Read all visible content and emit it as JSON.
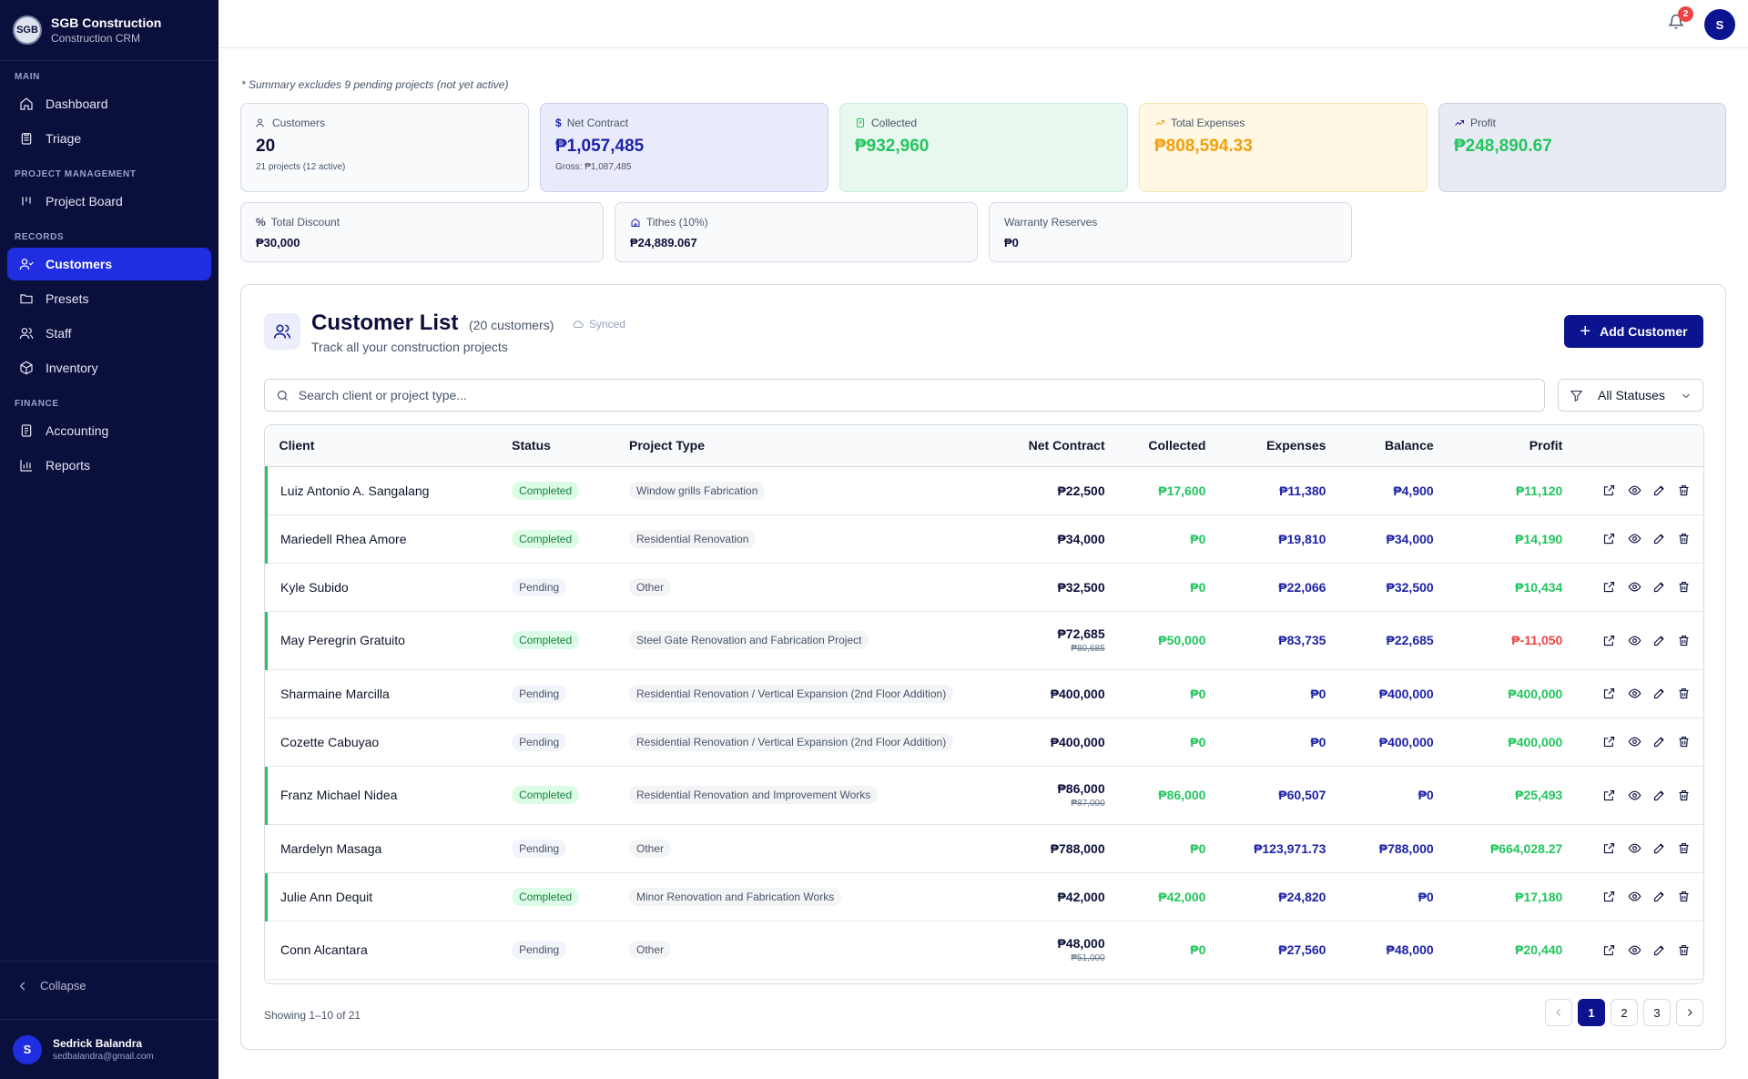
{
  "brand": {
    "logo": "SGB",
    "name": "SGB Construction",
    "sub": "Construction CRM"
  },
  "nav": {
    "sections": [
      {
        "heading": "MAIN",
        "items": [
          {
            "label": "Dashboard",
            "icon": "home-icon"
          },
          {
            "label": "Triage",
            "icon": "clipboard-icon"
          }
        ]
      },
      {
        "heading": "PROJECT MANAGEMENT",
        "items": [
          {
            "label": "Project Board",
            "icon": "kanban-icon"
          }
        ]
      },
      {
        "heading": "RECORDS",
        "items": [
          {
            "label": "Customers",
            "icon": "users-icon",
            "active": true
          },
          {
            "label": "Presets",
            "icon": "folder-icon"
          },
          {
            "label": "Staff",
            "icon": "staff-icon"
          },
          {
            "label": "Inventory",
            "icon": "box-icon"
          }
        ]
      },
      {
        "heading": "FINANCE",
        "items": [
          {
            "label": "Accounting",
            "icon": "ledger-icon"
          },
          {
            "label": "Reports",
            "icon": "bar-chart-icon"
          }
        ]
      }
    ],
    "collapse": "Collapse"
  },
  "user": {
    "initial": "S",
    "name": "Sedrick Balandra",
    "email": "sedbalandra@gmail.com"
  },
  "topbar": {
    "notifications": "2",
    "avatar": "S"
  },
  "summary": {
    "note": "* Summary excludes 9 pending projects (not yet active)",
    "customers": {
      "label": "Customers",
      "value": "20",
      "sub": "21 projects (12 active)"
    },
    "net_contract": {
      "label": "Net Contract",
      "value": "₱1,057,485",
      "sub": "Gross: ₱1,087,485"
    },
    "collected": {
      "label": "Collected",
      "value": "₱932,960"
    },
    "expenses": {
      "label": "Total Expenses",
      "value": "₱808,594.33"
    },
    "profit": {
      "label": "Profit",
      "value": "₱248,890.67"
    },
    "discount": {
      "label": "Total Discount",
      "value": "₱30,000"
    },
    "tithes": {
      "label": "Tithes (10%)",
      "value": "₱24,889.067"
    },
    "warranty": {
      "label": "Warranty Reserves",
      "value": "₱0"
    }
  },
  "panel": {
    "title": "Customer List",
    "count": "(20 customers)",
    "synced": "Synced",
    "desc": "Track all your construction projects",
    "add_label": "Add Customer",
    "search_placeholder": "Search client or project type...",
    "filter_label": "All Statuses"
  },
  "table": {
    "headers": [
      "Client",
      "Status",
      "Project Type",
      "Net Contract",
      "Collected",
      "Expenses",
      "Balance",
      "Profit"
    ],
    "rows": [
      {
        "client": "Luiz Antonio A. Sangalang",
        "status": "Completed",
        "type": "Window grills Fabrication",
        "net": "₱22,500",
        "gross": "",
        "collected": "₱17,600",
        "expenses": "₱11,380",
        "balance": "₱4,900",
        "profit": "₱11,120"
      },
      {
        "client": "Mariedell Rhea Amore",
        "status": "Completed",
        "type": "Residential Renovation",
        "net": "₱34,000",
        "gross": "",
        "collected": "₱0",
        "expenses": "₱19,810",
        "balance": "₱34,000",
        "profit": "₱14,190"
      },
      {
        "client": "Kyle Subido",
        "status": "Pending",
        "type": "Other",
        "net": "₱32,500",
        "gross": "",
        "collected": "₱0",
        "expenses": "₱22,066",
        "balance": "₱32,500",
        "profit": "₱10,434"
      },
      {
        "client": "May Peregrin Gratuito",
        "status": "Completed",
        "type": "Steel Gate Renovation and Fabrication Project",
        "net": "₱72,685",
        "gross": "₱80,685",
        "collected": "₱50,000",
        "expenses": "₱83,735",
        "balance": "₱22,685",
        "profit": "₱-11,050",
        "negative": true
      },
      {
        "client": "Sharmaine Marcilla",
        "status": "Pending",
        "type": "Residential Renovation / Vertical Expansion (2nd Floor Addition)",
        "net": "₱400,000",
        "gross": "",
        "collected": "₱0",
        "expenses": "₱0",
        "balance": "₱400,000",
        "profit": "₱400,000"
      },
      {
        "client": "Cozette Cabuyao",
        "status": "Pending",
        "type": "Residential Renovation / Vertical Expansion (2nd Floor Addition)",
        "net": "₱400,000",
        "gross": "",
        "collected": "₱0",
        "expenses": "₱0",
        "balance": "₱400,000",
        "profit": "₱400,000"
      },
      {
        "client": "Franz Michael Nidea",
        "status": "Completed",
        "type": "Residential Renovation and Improvement Works",
        "net": "₱86,000",
        "gross": "₱87,000",
        "collected": "₱86,000",
        "expenses": "₱60,507",
        "balance": "₱0",
        "profit": "₱25,493"
      },
      {
        "client": "Mardelyn Masaga",
        "status": "Pending",
        "type": "Other",
        "net": "₱788,000",
        "gross": "",
        "collected": "₱0",
        "expenses": "₱123,971.73",
        "balance": "₱788,000",
        "profit": "₱664,028.27"
      },
      {
        "client": "Julie Ann Dequit",
        "status": "Completed",
        "type": "Minor Renovation and Fabrication Works",
        "net": "₱42,000",
        "gross": "",
        "collected": "₱42,000",
        "expenses": "₱24,820",
        "balance": "₱0",
        "profit": "₱17,180"
      },
      {
        "client": "Conn Alcantara",
        "status": "Pending",
        "type": "Other",
        "net": "₱48,000",
        "gross": "₱51,000",
        "collected": "₱0",
        "expenses": "₱27,560",
        "balance": "₱48,000",
        "profit": "₱20,440"
      }
    ]
  },
  "pagination": {
    "showing": "Showing 1–10 of 21",
    "pages": [
      "1",
      "2",
      "3"
    ],
    "current": "1"
  },
  "colors": {
    "sidebar": "#0b0f3b",
    "accent": "#1f2ee0",
    "primary": "#0c138f",
    "green": "#22c55e",
    "red": "#ef4444",
    "amber": "#f59e0b"
  }
}
